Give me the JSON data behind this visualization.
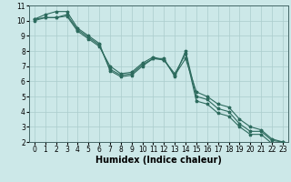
{
  "title": "",
  "xlabel": "Humidex (Indice chaleur)",
  "xlim": [
    -0.5,
    23.5
  ],
  "ylim": [
    2,
    11
  ],
  "yticks": [
    2,
    3,
    4,
    5,
    6,
    7,
    8,
    9,
    10,
    11
  ],
  "xticks": [
    0,
    1,
    2,
    3,
    4,
    5,
    6,
    7,
    8,
    9,
    10,
    11,
    12,
    13,
    14,
    15,
    16,
    17,
    18,
    19,
    20,
    21,
    22,
    23
  ],
  "background_color": "#cce8e8",
  "grid_color": "#aacccc",
  "line_color": "#2d6b5e",
  "line1_y": [
    10.1,
    10.4,
    10.6,
    10.6,
    9.5,
    9.0,
    8.5,
    6.7,
    6.3,
    6.4,
    7.0,
    7.5,
    7.5,
    6.3,
    8.0,
    5.0,
    4.8,
    4.2,
    4.0,
    3.2,
    2.7,
    2.7,
    2.1,
    2.0
  ],
  "line2_y": [
    10.0,
    10.2,
    10.2,
    10.3,
    9.3,
    8.8,
    8.3,
    7.0,
    6.5,
    6.6,
    7.2,
    7.6,
    7.4,
    6.5,
    7.8,
    4.7,
    4.5,
    3.9,
    3.7,
    3.0,
    2.5,
    2.5,
    1.9,
    1.9
  ],
  "line3_y": [
    10.1,
    10.2,
    10.2,
    10.4,
    9.4,
    8.9,
    8.4,
    6.8,
    6.4,
    6.5,
    7.1,
    7.5,
    7.4,
    6.4,
    7.5,
    5.3,
    5.0,
    4.5,
    4.3,
    3.5,
    3.0,
    2.8,
    2.2,
    2.0
  ],
  "tick_fontsize": 5.5,
  "xlabel_fontsize": 7,
  "marker_size": 2.5,
  "line_width": 0.8
}
